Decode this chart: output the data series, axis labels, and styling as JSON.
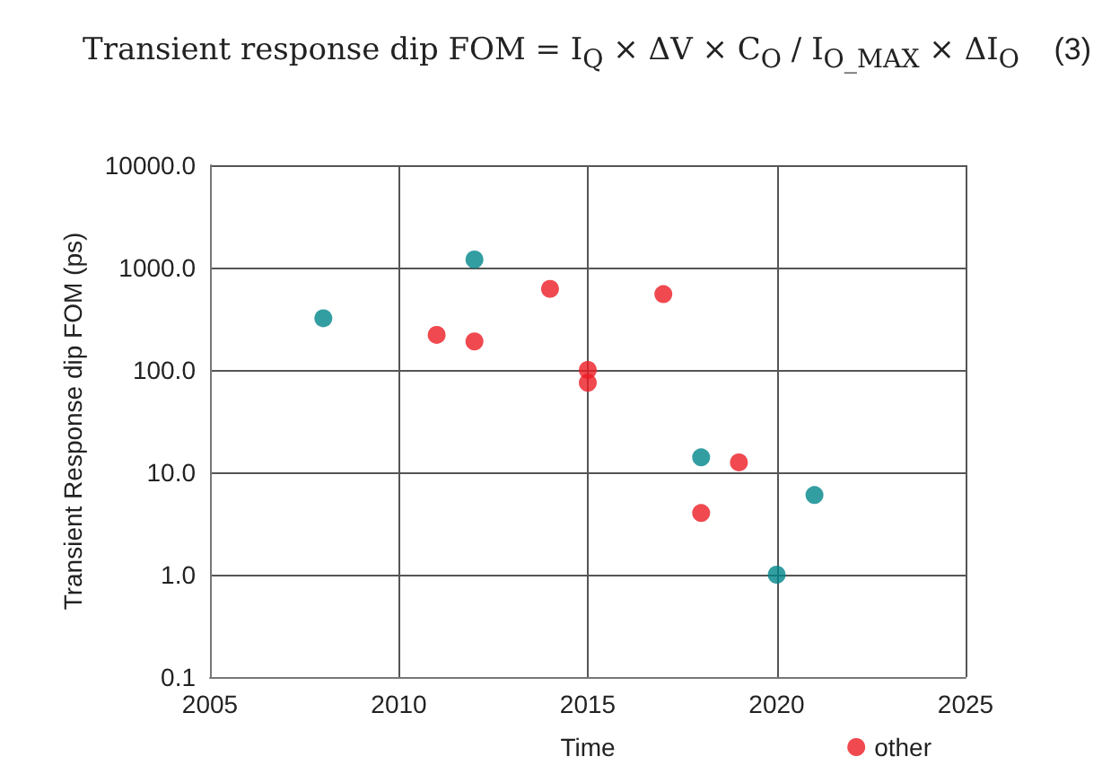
{
  "chart_data": {
    "type": "scatter",
    "xlabel": "Time",
    "ylabel": "Transient Response dip FOM (ps)",
    "annotations": [
      "Transient response dip FOM = I$_{Q}$ × ΔV × C$_{O}$ / I$_{O_MAX}$ × ΔI$_{O}$",
      "(3)"
    ],
    "series": [
      {
        "color": "#00868b",
        "x": [
          2008,
          2012,
          2018,
          2021,
          2020
        ],
        "values": [
          320,
          1200,
          14,
          6,
          1
        ]
      },
      {
        "name": "other",
        "color": "#ec1c24",
        "x": [
          2011,
          2012,
          2014,
          2015,
          2015,
          2017,
          2018,
          2019
        ],
        "values": [
          220,
          190,
          620,
          100,
          75,
          550,
          4,
          12.5
        ]
      }
    ],
    "xlim": [
      2005,
      2025
    ],
    "xticks": [
      2005,
      2010,
      2015,
      2020,
      2025
    ],
    "ylim": [
      0.1,
      10000
    ],
    "yticks": [
      {
        "value": 0.1,
        "label": "0.1"
      },
      {
        "value": 1,
        "label": "1.0"
      },
      {
        "value": 10,
        "label": "10.0"
      },
      {
        "value": 100,
        "label": "100.0"
      },
      {
        "value": 1000,
        "label": "1000.0"
      },
      {
        "value": 10000,
        "label": "10000.0"
      }
    ],
    "log": "y",
    "grid": true,
    "legend": "bottom right",
    "marker": "circle"
  }
}
